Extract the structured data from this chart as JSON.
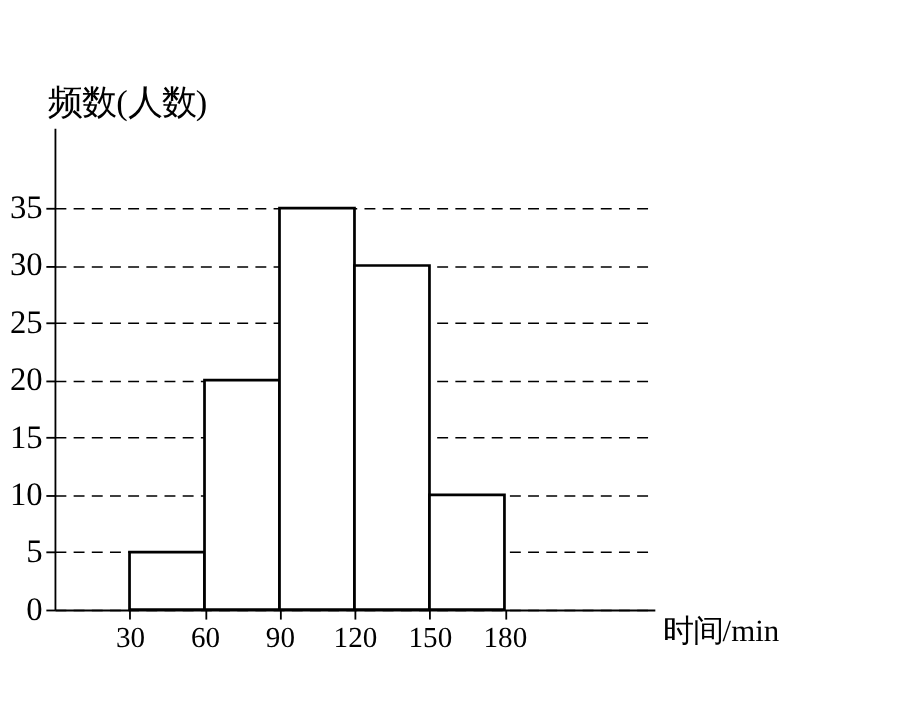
{
  "chart_data": {
    "type": "histogram",
    "xlabel": "时间/min",
    "ylabel": "频数(人数)",
    "bins": [
      30,
      60,
      90,
      120,
      150,
      180
    ],
    "values": [
      5,
      20,
      35,
      30,
      10
    ],
    "color": "#ffffff",
    "xlim": [
      0,
      240
    ],
    "xticks": [
      30,
      60,
      90,
      120,
      150,
      180
    ],
    "ylim": [
      0,
      42
    ],
    "yticks": [
      0,
      5,
      10,
      15,
      20,
      25,
      30,
      35
    ],
    "grid": "y"
  }
}
